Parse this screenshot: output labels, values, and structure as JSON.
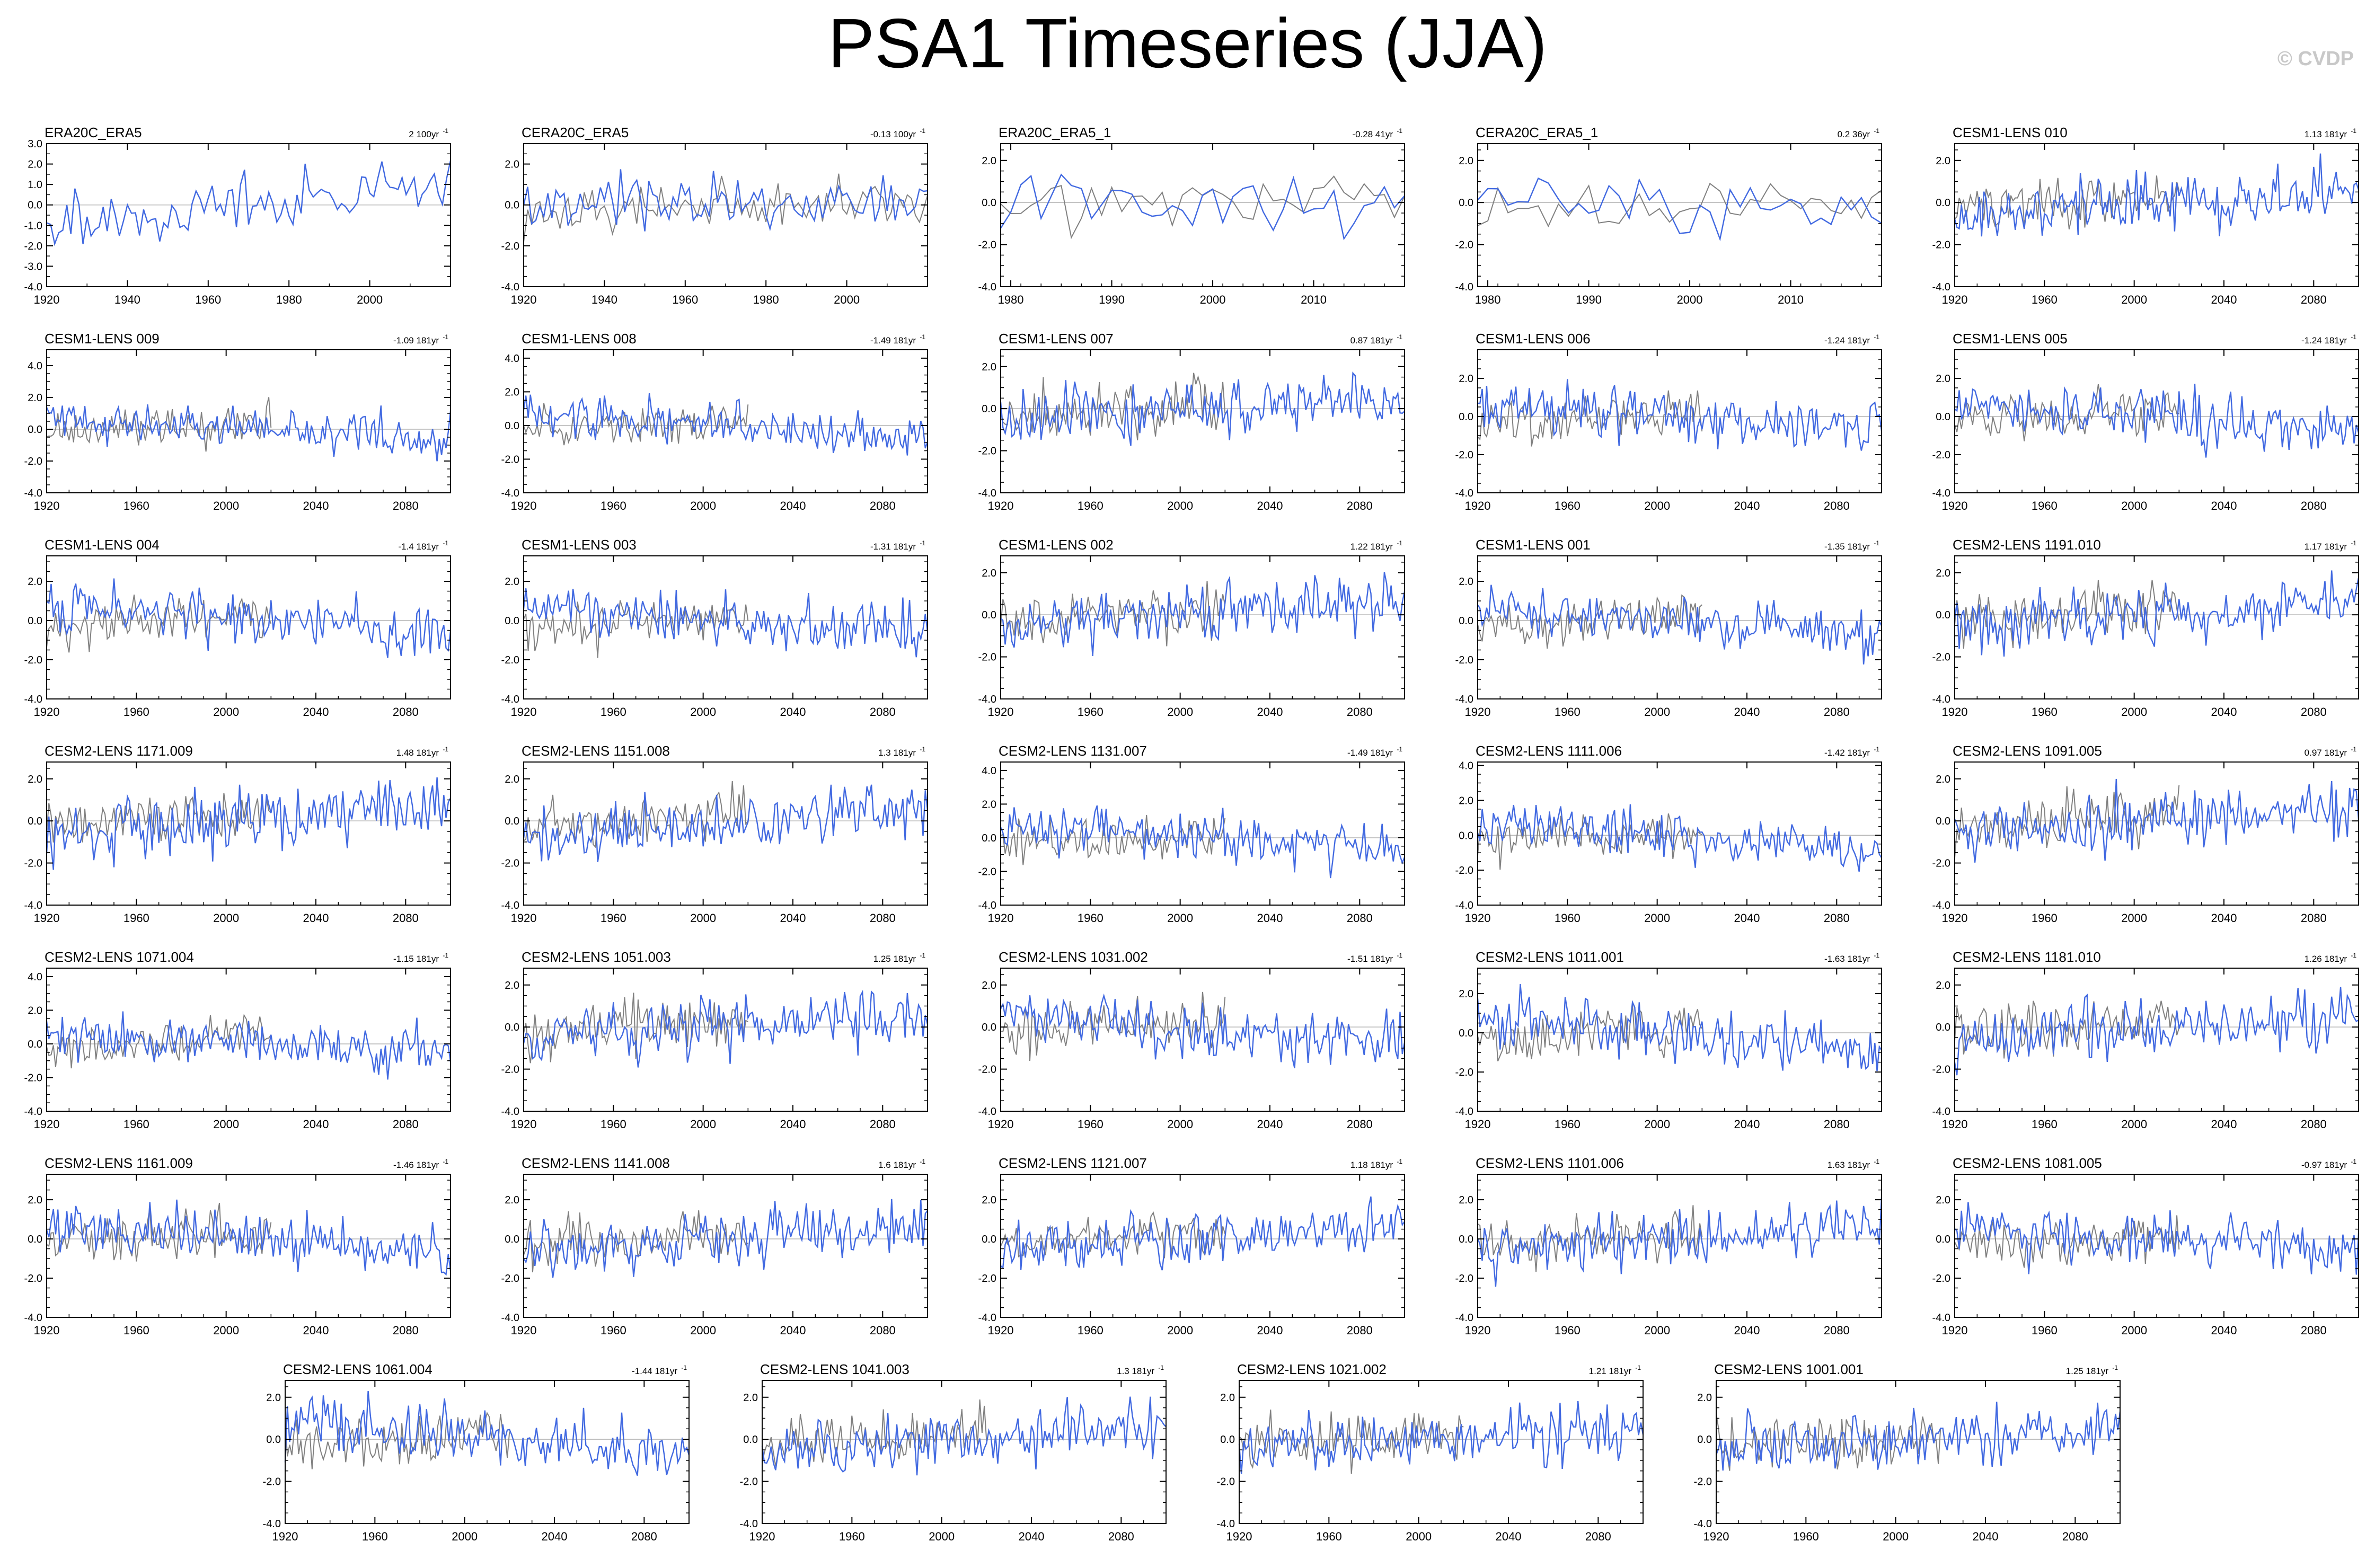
{
  "title": "PSA1 Timeseries (JJA)",
  "watermark": "© CVDP",
  "colors": {
    "model": "#4169e1",
    "obs": "#808080",
    "zero": "#b4b4b4",
    "frame": "#000000"
  },
  "chart_data": [
    {
      "type": "line",
      "name": "ERA20C_ERA5",
      "trend": "2 100yr",
      "x_start": 1920,
      "x_end": 2020,
      "x_ticks": [
        1920,
        1940,
        1960,
        1980,
        2000
      ],
      "ylim": [
        -4,
        3
      ],
      "y_ticks": [
        -4,
        -3,
        -2,
        -1,
        0,
        1,
        2,
        3
      ],
      "y_decimals": 1,
      "overlay_obs": false
    },
    {
      "type": "line",
      "name": "CERA20C_ERA5",
      "trend": "-0.13 100yr",
      "x_start": 1920,
      "x_end": 2020,
      "x_ticks": [
        1920,
        1940,
        1960,
        1980,
        2000
      ],
      "ylim": [
        -4,
        3
      ],
      "y_ticks": [
        -4,
        -2,
        0,
        2
      ],
      "y_decimals": 1,
      "overlay_obs": true
    },
    {
      "type": "line",
      "name": "ERA20C_ERA5_1",
      "trend": "-0.28 41yr",
      "x_start": 1979,
      "x_end": 2019,
      "x_ticks": [
        1980,
        1990,
        2000,
        2010
      ],
      "ylim": [
        -4,
        2.8
      ],
      "y_ticks": [
        -4,
        -2,
        0,
        2
      ],
      "y_decimals": 1,
      "overlay_obs": true
    },
    {
      "type": "line",
      "name": "CERA20C_ERA5_1",
      "trend": "0.2 36yr",
      "x_start": 1979,
      "x_end": 2019,
      "x_ticks": [
        1980,
        1990,
        2000,
        2010
      ],
      "ylim": [
        -4,
        2.8
      ],
      "y_ticks": [
        -4,
        -2,
        0,
        2
      ],
      "y_decimals": 1,
      "overlay_obs": true
    },
    {
      "type": "line",
      "name": "CESM1-LENS 010",
      "trend": "1.13 181yr",
      "x_start": 1920,
      "x_end": 2100,
      "x_ticks": [
        1920,
        1960,
        2000,
        2040,
        2080
      ],
      "ylim": [
        -4,
        2.8
      ],
      "y_ticks": [
        -4,
        -2,
        0,
        2
      ],
      "y_decimals": 1,
      "overlay_obs": true
    },
    {
      "type": "line",
      "name": "CESM1-LENS 009",
      "trend": "-1.09 181yr",
      "x_start": 1920,
      "x_end": 2100,
      "x_ticks": [
        1920,
        1960,
        2000,
        2040,
        2080
      ],
      "ylim": [
        -4,
        5
      ],
      "y_ticks": [
        -4,
        -2,
        0,
        2,
        4
      ],
      "y_decimals": 1,
      "overlay_obs": true
    },
    {
      "type": "line",
      "name": "CESM1-LENS 008",
      "trend": "-1.49 181yr",
      "x_start": 1920,
      "x_end": 2100,
      "x_ticks": [
        1920,
        1960,
        2000,
        2040,
        2080
      ],
      "ylim": [
        -4,
        4.5
      ],
      "y_ticks": [
        -4,
        -2,
        0,
        2,
        4
      ],
      "y_decimals": 1,
      "overlay_obs": true
    },
    {
      "type": "line",
      "name": "CESM1-LENS 007",
      "trend": "0.87 181yr",
      "x_start": 1920,
      "x_end": 2100,
      "x_ticks": [
        1920,
        1960,
        2000,
        2040,
        2080
      ],
      "ylim": [
        -4,
        2.8
      ],
      "y_ticks": [
        -4,
        -2,
        0,
        2
      ],
      "y_decimals": 1,
      "overlay_obs": true
    },
    {
      "type": "line",
      "name": "CESM1-LENS 006",
      "trend": "-1.24 181yr",
      "x_start": 1920,
      "x_end": 2100,
      "x_ticks": [
        1920,
        1960,
        2000,
        2040,
        2080
      ],
      "ylim": [
        -4,
        3.5
      ],
      "y_ticks": [
        -4,
        -2,
        0,
        2
      ],
      "y_decimals": 1,
      "overlay_obs": true
    },
    {
      "type": "line",
      "name": "CESM1-LENS 005",
      "trend": "-1.24 181yr",
      "x_start": 1920,
      "x_end": 2100,
      "x_ticks": [
        1920,
        1960,
        2000,
        2040,
        2080
      ],
      "ylim": [
        -4,
        3.5
      ],
      "y_ticks": [
        -4,
        -2,
        0,
        2
      ],
      "y_decimals": 1,
      "overlay_obs": true
    },
    {
      "type": "line",
      "name": "CESM1-LENS 004",
      "trend": "-1.4 181yr",
      "x_start": 1920,
      "x_end": 2100,
      "x_ticks": [
        1920,
        1960,
        2000,
        2040,
        2080
      ],
      "ylim": [
        -4,
        3.3
      ],
      "y_ticks": [
        -4,
        -2,
        0,
        2
      ],
      "y_decimals": 1,
      "overlay_obs": true
    },
    {
      "type": "line",
      "name": "CESM1-LENS 003",
      "trend": "-1.31 181yr",
      "x_start": 1920,
      "x_end": 2100,
      "x_ticks": [
        1920,
        1960,
        2000,
        2040,
        2080
      ],
      "ylim": [
        -4,
        3.3
      ],
      "y_ticks": [
        -4,
        -2,
        0,
        2
      ],
      "y_decimals": 1,
      "overlay_obs": true
    },
    {
      "type": "line",
      "name": "CESM1-LENS 002",
      "trend": "1.22 181yr",
      "x_start": 1920,
      "x_end": 2100,
      "x_ticks": [
        1920,
        1960,
        2000,
        2040,
        2080
      ],
      "ylim": [
        -4,
        2.8
      ],
      "y_ticks": [
        -4,
        -2,
        0,
        2
      ],
      "y_decimals": 1,
      "overlay_obs": true
    },
    {
      "type": "line",
      "name": "CESM1-LENS 001",
      "trend": "-1.35 181yr",
      "x_start": 1920,
      "x_end": 2100,
      "x_ticks": [
        1920,
        1960,
        2000,
        2040,
        2080
      ],
      "ylim": [
        -4,
        3.3
      ],
      "y_ticks": [
        -4,
        -2,
        0,
        2
      ],
      "y_decimals": 1,
      "overlay_obs": true
    },
    {
      "type": "line",
      "name": "CESM2-LENS 1191.010",
      "trend": "1.17 181yr",
      "x_start": 1920,
      "x_end": 2100,
      "x_ticks": [
        1920,
        1960,
        2000,
        2040,
        2080
      ],
      "ylim": [
        -4,
        2.8
      ],
      "y_ticks": [
        -4,
        -2,
        0,
        2
      ],
      "y_decimals": 1,
      "overlay_obs": true
    },
    {
      "type": "line",
      "name": "CESM2-LENS 1171.009",
      "trend": "1.48 181yr",
      "x_start": 1920,
      "x_end": 2100,
      "x_ticks": [
        1920,
        1960,
        2000,
        2040,
        2080
      ],
      "ylim": [
        -4,
        2.8
      ],
      "y_ticks": [
        -4,
        -2,
        0,
        2
      ],
      "y_decimals": 1,
      "overlay_obs": true
    },
    {
      "type": "line",
      "name": "CESM2-LENS 1151.008",
      "trend": "1.3 181yr",
      "x_start": 1920,
      "x_end": 2100,
      "x_ticks": [
        1920,
        1960,
        2000,
        2040,
        2080
      ],
      "ylim": [
        -4,
        2.8
      ],
      "y_ticks": [
        -4,
        -2,
        0,
        2
      ],
      "y_decimals": 1,
      "overlay_obs": true
    },
    {
      "type": "line",
      "name": "CESM2-LENS 1131.007",
      "trend": "-1.49 181yr",
      "x_start": 1920,
      "x_end": 2100,
      "x_ticks": [
        1920,
        1960,
        2000,
        2040,
        2080
      ],
      "ylim": [
        -4,
        4.5
      ],
      "y_ticks": [
        -4,
        -2,
        0,
        2,
        4
      ],
      "y_decimals": 1,
      "overlay_obs": true
    },
    {
      "type": "line",
      "name": "CESM2-LENS 1111.006",
      "trend": "-1.42 181yr",
      "x_start": 1920,
      "x_end": 2100,
      "x_ticks": [
        1920,
        1960,
        2000,
        2040,
        2080
      ],
      "ylim": [
        -4,
        4.2
      ],
      "y_ticks": [
        -4,
        -2,
        0,
        2,
        4
      ],
      "y_decimals": 1,
      "overlay_obs": true
    },
    {
      "type": "line",
      "name": "CESM2-LENS 1091.005",
      "trend": "0.97 181yr",
      "x_start": 1920,
      "x_end": 2100,
      "x_ticks": [
        1920,
        1960,
        2000,
        2040,
        2080
      ],
      "ylim": [
        -4,
        2.8
      ],
      "y_ticks": [
        -4,
        -2,
        0,
        2
      ],
      "y_decimals": 1,
      "overlay_obs": true
    },
    {
      "type": "line",
      "name": "CESM2-LENS 1071.004",
      "trend": "-1.15 181yr",
      "x_start": 1920,
      "x_end": 2100,
      "x_ticks": [
        1920,
        1960,
        2000,
        2040,
        2080
      ],
      "ylim": [
        -4,
        4.5
      ],
      "y_ticks": [
        -4,
        -2,
        0,
        2,
        4
      ],
      "y_decimals": 1,
      "overlay_obs": true
    },
    {
      "type": "line",
      "name": "CESM2-LENS 1051.003",
      "trend": "1.25 181yr",
      "x_start": 1920,
      "x_end": 2100,
      "x_ticks": [
        1920,
        1960,
        2000,
        2040,
        2080
      ],
      "ylim": [
        -4,
        2.8
      ],
      "y_ticks": [
        -4,
        -2,
        0,
        2
      ],
      "y_decimals": 1,
      "overlay_obs": true
    },
    {
      "type": "line",
      "name": "CESM2-LENS 1031.002",
      "trend": "-1.51 181yr",
      "x_start": 1920,
      "x_end": 2100,
      "x_ticks": [
        1920,
        1960,
        2000,
        2040,
        2080
      ],
      "ylim": [
        -4,
        2.8
      ],
      "y_ticks": [
        -4,
        -2,
        0,
        2
      ],
      "y_decimals": 1,
      "overlay_obs": true
    },
    {
      "type": "line",
      "name": "CESM2-LENS 1011.001",
      "trend": "-1.63 181yr",
      "x_start": 1920,
      "x_end": 2100,
      "x_ticks": [
        1920,
        1960,
        2000,
        2040,
        2080
      ],
      "ylim": [
        -4,
        3.3
      ],
      "y_ticks": [
        -4,
        -2,
        0,
        2
      ],
      "y_decimals": 1,
      "overlay_obs": true
    },
    {
      "type": "line",
      "name": "CESM2-LENS 1181.010",
      "trend": "1.26 181yr",
      "x_start": 1920,
      "x_end": 2100,
      "x_ticks": [
        1920,
        1960,
        2000,
        2040,
        2080
      ],
      "ylim": [
        -4,
        2.8
      ],
      "y_ticks": [
        -4,
        -2,
        0,
        2
      ],
      "y_decimals": 1,
      "overlay_obs": true
    },
    {
      "type": "line",
      "name": "CESM2-LENS 1161.009",
      "trend": "-1.46 181yr",
      "x_start": 1920,
      "x_end": 2100,
      "x_ticks": [
        1920,
        1960,
        2000,
        2040,
        2080
      ],
      "ylim": [
        -4,
        3.3
      ],
      "y_ticks": [
        -4,
        -2,
        0,
        2
      ],
      "y_decimals": 1,
      "overlay_obs": true
    },
    {
      "type": "line",
      "name": "CESM2-LENS 1141.008",
      "trend": "1.6 181yr",
      "x_start": 1920,
      "x_end": 2100,
      "x_ticks": [
        1920,
        1960,
        2000,
        2040,
        2080
      ],
      "ylim": [
        -4,
        3.3
      ],
      "y_ticks": [
        -4,
        -2,
        0,
        2
      ],
      "y_decimals": 1,
      "overlay_obs": true
    },
    {
      "type": "line",
      "name": "CESM2-LENS 1121.007",
      "trend": "1.18 181yr",
      "x_start": 1920,
      "x_end": 2100,
      "x_ticks": [
        1920,
        1960,
        2000,
        2040,
        2080
      ],
      "ylim": [
        -4,
        3.3
      ],
      "y_ticks": [
        -4,
        -2,
        0,
        2
      ],
      "y_decimals": 1,
      "overlay_obs": true
    },
    {
      "type": "line",
      "name": "CESM2-LENS 1101.006",
      "trend": "1.63 181yr",
      "x_start": 1920,
      "x_end": 2100,
      "x_ticks": [
        1920,
        1960,
        2000,
        2040,
        2080
      ],
      "ylim": [
        -4,
        3.3
      ],
      "y_ticks": [
        -4,
        -2,
        0,
        2
      ],
      "y_decimals": 1,
      "overlay_obs": true
    },
    {
      "type": "line",
      "name": "CESM2-LENS 1081.005",
      "trend": "-0.97 181yr",
      "x_start": 1920,
      "x_end": 2100,
      "x_ticks": [
        1920,
        1960,
        2000,
        2040,
        2080
      ],
      "ylim": [
        -4,
        3.3
      ],
      "y_ticks": [
        -4,
        -2,
        0,
        2
      ],
      "y_decimals": 1,
      "overlay_obs": true
    },
    {
      "type": "line",
      "name": "CESM2-LENS 1061.004",
      "trend": "-1.44 181yr",
      "x_start": 1920,
      "x_end": 2100,
      "x_ticks": [
        1920,
        1960,
        2000,
        2040,
        2080
      ],
      "ylim": [
        -4,
        2.8
      ],
      "y_ticks": [
        -4,
        -2,
        0,
        2
      ],
      "y_decimals": 1,
      "overlay_obs": true
    },
    {
      "type": "line",
      "name": "CESM2-LENS 1041.003",
      "trend": "1.3 181yr",
      "x_start": 1920,
      "x_end": 2100,
      "x_ticks": [
        1920,
        1960,
        2000,
        2040,
        2080
      ],
      "ylim": [
        -4,
        2.8
      ],
      "y_ticks": [
        -4,
        -2,
        0,
        2
      ],
      "y_decimals": 1,
      "overlay_obs": true
    },
    {
      "type": "line",
      "name": "CESM2-LENS 1021.002",
      "trend": "1.21 181yr",
      "x_start": 1920,
      "x_end": 2100,
      "x_ticks": [
        1920,
        1960,
        2000,
        2040,
        2080
      ],
      "ylim": [
        -4,
        2.8
      ],
      "y_ticks": [
        -4,
        -2,
        0,
        2
      ],
      "y_decimals": 1,
      "overlay_obs": true
    },
    {
      "type": "line",
      "name": "CESM2-LENS 1001.001",
      "trend": "1.25 181yr",
      "x_start": 1920,
      "x_end": 2100,
      "x_ticks": [
        1920,
        1960,
        2000,
        2040,
        2080
      ],
      "ylim": [
        -4,
        2.8
      ],
      "y_ticks": [
        -4,
        -2,
        0,
        2
      ],
      "y_decimals": 1,
      "overlay_obs": true
    }
  ]
}
